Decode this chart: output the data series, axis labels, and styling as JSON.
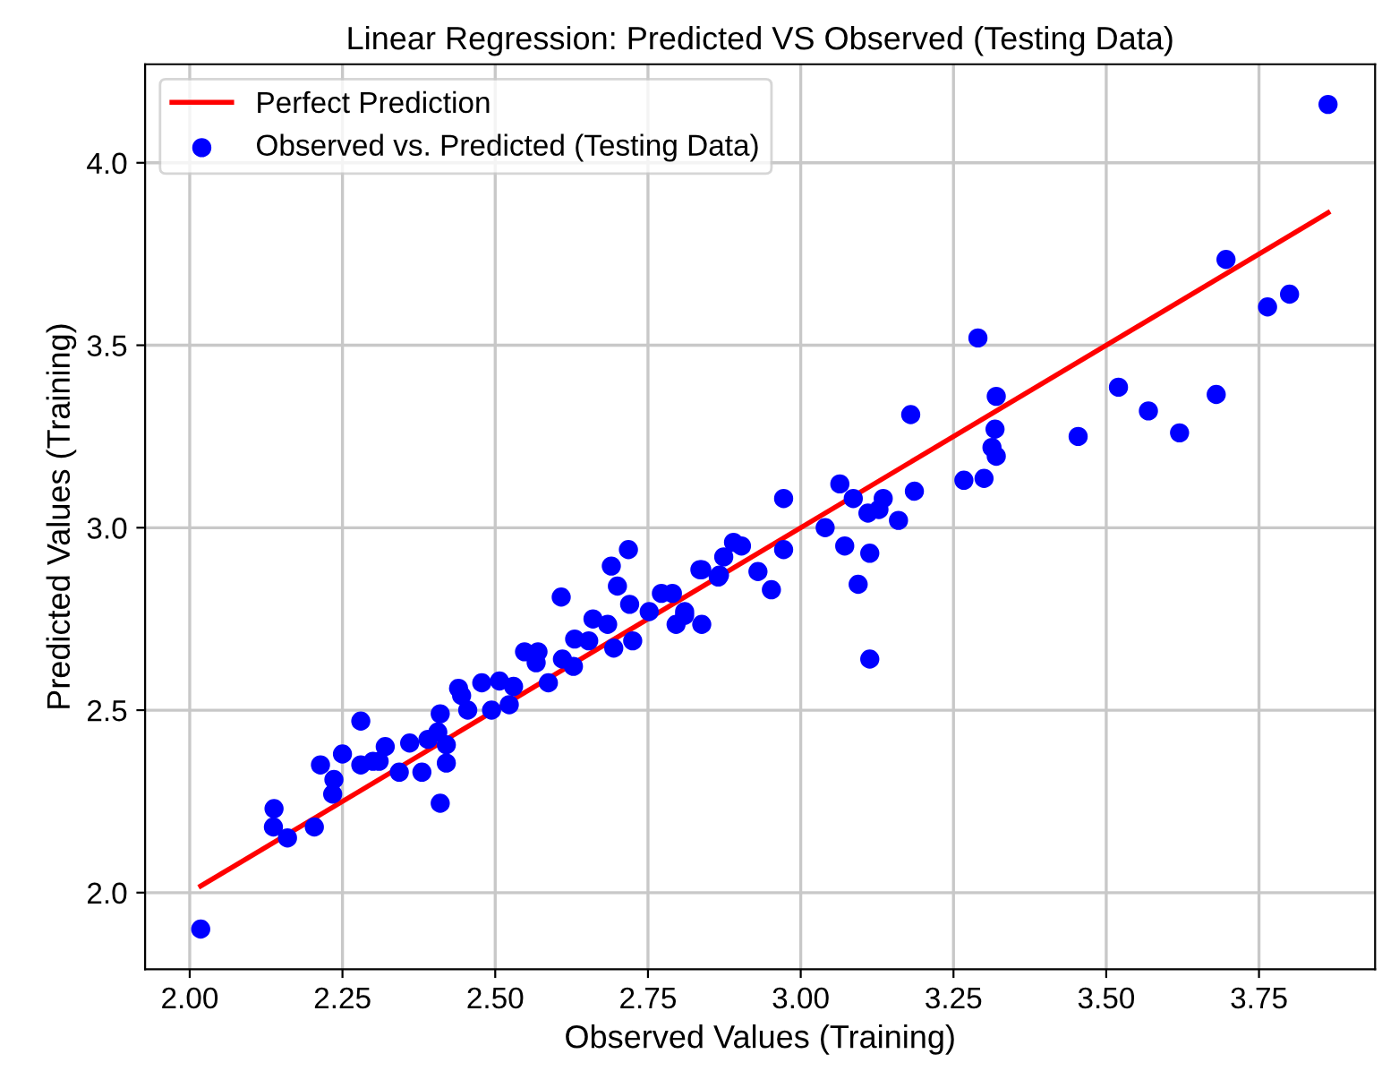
{
  "chart_data": {
    "type": "scatter",
    "title": "Linear Regression: Predicted VS Observed (Testing Data)",
    "xlabel": "Observed Values (Training)",
    "ylabel": "Predicted Values (Training)",
    "xlim": [
      1.927,
      3.94
    ],
    "ylim": [
      1.79,
      4.27
    ],
    "xticks": [
      {
        "value": 2.0,
        "label": "2.00"
      },
      {
        "value": 2.25,
        "label": "2.25"
      },
      {
        "value": 2.5,
        "label": "2.50"
      },
      {
        "value": 2.75,
        "label": "2.75"
      },
      {
        "value": 3.0,
        "label": "3.00"
      },
      {
        "value": 3.25,
        "label": "3.25"
      },
      {
        "value": 3.5,
        "label": "3.50"
      },
      {
        "value": 3.75,
        "label": "3.75"
      }
    ],
    "yticks": [
      {
        "value": 2.0,
        "label": "2.0"
      },
      {
        "value": 2.5,
        "label": "2.5"
      },
      {
        "value": 3.0,
        "label": "3.0"
      },
      {
        "value": 3.5,
        "label": "3.5"
      },
      {
        "value": 4.0,
        "label": "4.0"
      }
    ],
    "grid": true,
    "legend": "top left",
    "series": [
      {
        "name": "Perfect Prediction",
        "type": "line",
        "color": "#ff0000",
        "line_style": "solid",
        "marker": "none",
        "x": [
          2.018,
          3.863
        ],
        "values": [
          2.018,
          3.863
        ]
      },
      {
        "name": "Observed vs. Predicted (Testing Data)",
        "color": "#0000ff",
        "marker": "circle",
        "x": [
          2.018,
          2.138,
          2.137,
          2.16,
          2.204,
          2.214,
          2.236,
          2.234,
          2.25,
          2.28,
          2.28,
          2.3,
          2.32,
          2.31,
          2.343,
          2.36,
          2.38,
          2.39,
          2.41,
          2.41,
          2.42,
          2.42,
          2.406,
          2.44,
          2.445,
          2.455,
          2.478,
          2.507,
          2.494,
          2.53,
          2.523,
          2.548,
          2.57,
          2.567,
          2.587,
          2.61,
          2.608,
          2.628,
          2.63,
          2.653,
          2.66,
          2.684,
          2.694,
          2.69,
          2.7,
          2.718,
          2.72,
          2.725,
          2.752,
          2.772,
          2.79,
          2.796,
          2.81,
          2.838,
          2.838,
          3.863,
          3.696,
          3.764,
          3.8,
          3.29,
          3.32,
          3.318,
          3.313,
          3.32,
          3.52,
          3.569,
          3.62,
          3.68,
          3.454,
          3.3,
          3.267,
          3.18,
          3.186,
          3.16,
          3.135,
          3.128,
          3.11,
          3.086,
          3.064,
          3.04,
          3.072,
          3.113,
          3.094,
          2.972,
          2.972,
          2.952,
          2.93,
          2.89,
          2.903,
          2.874,
          2.835,
          2.865,
          3.113,
          2.81,
          2.867
        ],
        "values": [
          1.9,
          2.23,
          2.18,
          2.15,
          2.18,
          2.35,
          2.31,
          2.27,
          2.38,
          2.47,
          2.35,
          2.36,
          2.4,
          2.36,
          2.33,
          2.41,
          2.33,
          2.42,
          2.49,
          2.245,
          2.405,
          2.355,
          2.44,
          2.56,
          2.54,
          2.5,
          2.575,
          2.58,
          2.5,
          2.565,
          2.515,
          2.66,
          2.66,
          2.63,
          2.575,
          2.64,
          2.81,
          2.62,
          2.695,
          2.69,
          2.75,
          2.735,
          2.67,
          2.895,
          2.84,
          2.94,
          2.79,
          2.69,
          2.77,
          2.82,
          2.82,
          2.735,
          2.77,
          2.885,
          2.735,
          4.16,
          3.735,
          3.605,
          3.64,
          3.52,
          3.36,
          3.27,
          3.22,
          3.196,
          3.385,
          3.32,
          3.26,
          3.365,
          3.25,
          3.135,
          3.13,
          3.31,
          3.1,
          3.02,
          3.08,
          3.05,
          3.04,
          3.08,
          3.12,
          3.0,
          2.95,
          2.93,
          2.845,
          3.08,
          2.94,
          2.83,
          2.88,
          2.96,
          2.95,
          2.92,
          2.885,
          2.865,
          2.64,
          2.76,
          2.87
        ]
      }
    ]
  }
}
